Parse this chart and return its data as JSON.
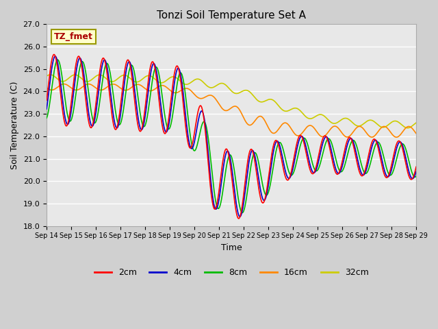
{
  "title": "Tonzi Soil Temperature Set A",
  "xlabel": "Time",
  "ylabel": "Soil Temperature (C)",
  "annotation": "TZ_fmet",
  "ylim": [
    18.0,
    27.0
  ],
  "yticks": [
    18.0,
    19.0,
    20.0,
    21.0,
    22.0,
    23.0,
    24.0,
    25.0,
    26.0,
    27.0
  ],
  "xtick_labels": [
    "Sep 14",
    "Sep 15",
    "Sep 16",
    "Sep 17",
    "Sep 18",
    "Sep 19",
    "Sep 20",
    "Sep 21",
    "Sep 22",
    "Sep 23",
    "Sep 24",
    "Sep 25",
    "Sep 26",
    "Sep 27",
    "Sep 28",
    "Sep 29"
  ],
  "series": {
    "2cm": {
      "color": "#ff0000",
      "linewidth": 1.2
    },
    "4cm": {
      "color": "#0000cc",
      "linewidth": 1.2
    },
    "8cm": {
      "color": "#00bb00",
      "linewidth": 1.2
    },
    "16cm": {
      "color": "#ff8800",
      "linewidth": 1.2
    },
    "32cm": {
      "color": "#cccc00",
      "linewidth": 1.2
    }
  },
  "fig_facecolor": "#d0d0d0",
  "ax_facecolor": "#e8e8e8",
  "n_points": 2000
}
